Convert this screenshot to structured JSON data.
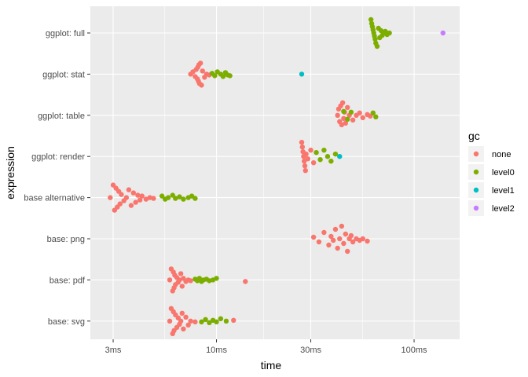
{
  "chart_data": {
    "type": "scatter",
    "xlabel": "time",
    "ylabel": "expression",
    "x_scale": "log10",
    "x_unit": "ms",
    "xlim": [
      2.3,
      170
    ],
    "x_ticks": [
      {
        "value": 3,
        "label": "3ms"
      },
      {
        "value": 10,
        "label": "10ms"
      },
      {
        "value": 30,
        "label": "30ms"
      },
      {
        "value": 100,
        "label": "100ms"
      }
    ],
    "categories": [
      "ggplot: full",
      "ggplot: stat",
      "ggplot: table",
      "ggplot: render",
      "base alternative",
      "base: png",
      "base: pdf",
      "base: svg"
    ],
    "grid": true,
    "legend": {
      "title": "gc",
      "position": "right",
      "entries": [
        {
          "label": "none",
          "color": "#F8766D"
        },
        {
          "label": "level0",
          "color": "#7CAE00"
        },
        {
          "label": "level1",
          "color": "#00BFC4"
        },
        {
          "label": "level2",
          "color": "#C77CFF"
        }
      ]
    },
    "series": [
      {
        "expression": "ggplot: full",
        "gc": "level0",
        "x": [
          60.5,
          61,
          61.5,
          62,
          62.5,
          63,
          63.5,
          64,
          65,
          66,
          67,
          68,
          69,
          70,
          71.5,
          73,
          75
        ],
        "y_offset": [
          -17,
          -12,
          -8,
          -4,
          0,
          4,
          8,
          13,
          17,
          -6,
          6,
          -3,
          3,
          0,
          -2,
          2,
          0
        ]
      },
      {
        "expression": "ggplot: full",
        "gc": "level2",
        "x": [
          140
        ],
        "y_offset": [
          0
        ]
      },
      {
        "expression": "ggplot: stat",
        "gc": "none",
        "x": [
          7.4,
          7.6,
          7.8,
          7.9,
          8.0,
          8.05,
          8.1,
          8.15,
          8.2,
          8.3,
          8.4,
          8.5,
          8.7,
          8.9,
          9.2
        ],
        "y_offset": [
          0,
          -3,
          3,
          -6,
          6,
          -9,
          9,
          -12,
          12,
          -14,
          14,
          -4,
          4,
          0,
          1
        ]
      },
      {
        "expression": "ggplot: stat",
        "gc": "level0",
        "x": [
          9.5,
          9.8,
          10.1,
          10.5,
          10.8,
          11.1,
          11.4,
          11.7
        ],
        "y_offset": [
          -1,
          2,
          -3,
          0,
          3,
          -2,
          1,
          2
        ]
      },
      {
        "expression": "ggplot: stat",
        "gc": "level1",
        "x": [
          27
        ],
        "y_offset": [
          0
        ]
      },
      {
        "expression": "ggplot: table",
        "gc": "none",
        "x": [
          41,
          41.5,
          42,
          42.5,
          43,
          43.5,
          44,
          44.5,
          45,
          46,
          47,
          49,
          51,
          53,
          55,
          58,
          60
        ],
        "y_offset": [
          0,
          -8,
          8,
          -12,
          12,
          -16,
          4,
          -4,
          10,
          -10,
          0,
          6,
          0,
          -3,
          3,
          -1,
          1
        ]
      },
      {
        "expression": "ggplot: table",
        "gc": "level0",
        "x": [
          44,
          46,
          48,
          62,
          64
        ],
        "y_offset": [
          -5,
          5,
          -4,
          -3,
          2
        ]
      },
      {
        "expression": "ggplot: render",
        "gc": "none",
        "x": [
          27,
          27.2,
          27.4,
          27.6,
          27.8,
          28,
          28.2,
          28.4,
          29,
          30,
          31
        ],
        "y_offset": [
          -18,
          -12,
          -6,
          0,
          6,
          12,
          18,
          -3,
          3,
          -8,
          8
        ]
      },
      {
        "expression": "ggplot: render",
        "gc": "level0",
        "x": [
          32,
          33.5,
          35,
          36.5,
          38,
          40
        ],
        "y_offset": [
          -5,
          4,
          -8,
          0,
          6,
          -3
        ]
      },
      {
        "expression": "ggplot: render",
        "gc": "level1",
        "x": [
          42
        ],
        "y_offset": [
          0
        ]
      },
      {
        "expression": "base alternative",
        "gc": "none",
        "x": [
          2.9,
          3.0,
          3.05,
          3.1,
          3.15,
          3.2,
          3.25,
          3.3,
          3.4,
          3.5,
          3.6,
          3.7,
          3.8,
          3.9,
          4.0,
          4.1,
          4.2,
          4.4,
          4.6,
          4.8
        ],
        "y_offset": [
          0,
          -16,
          16,
          -12,
          12,
          -8,
          8,
          -4,
          4,
          0,
          -10,
          10,
          -6,
          6,
          -3,
          3,
          -2,
          2,
          0,
          1
        ]
      },
      {
        "expression": "base alternative",
        "gc": "level0",
        "x": [
          5.3,
          5.5,
          5.7,
          6.0,
          6.2,
          6.5,
          6.8,
          7.2,
          7.5,
          7.8
        ],
        "y_offset": [
          -2,
          2,
          0,
          -3,
          1,
          -1,
          2,
          0,
          -2,
          1
        ]
      },
      {
        "expression": "base: png",
        "gc": "none",
        "x": [
          31,
          33,
          35,
          37,
          38,
          39,
          40,
          41,
          42,
          43,
          44,
          45,
          46,
          47,
          48,
          49,
          51,
          53,
          55,
          58
        ],
        "y_offset": [
          -2,
          4,
          -8,
          8,
          -3,
          2,
          -12,
          12,
          0,
          -16,
          6,
          -6,
          16,
          0,
          -4,
          4,
          0,
          2,
          0,
          3
        ]
      },
      {
        "expression": "base: pdf",
        "gc": "none",
        "x": [
          5.8,
          5.9,
          6.0,
          6.05,
          6.1,
          6.15,
          6.2,
          6.3,
          6.4,
          6.5,
          6.6,
          6.7,
          6.8,
          7.0,
          7.2,
          7.4,
          14
        ],
        "y_offset": [
          0,
          -14,
          14,
          -10,
          10,
          -6,
          6,
          -3,
          3,
          0,
          -8,
          8,
          -2,
          2,
          0,
          1,
          2
        ]
      },
      {
        "expression": "base: pdf",
        "gc": "level0",
        "x": [
          7.8,
          8.0,
          8.2,
          8.4,
          8.6,
          8.9,
          9.2,
          9.6,
          10.0
        ],
        "y_offset": [
          -1,
          1,
          -2,
          2,
          0,
          -1,
          1,
          0,
          -2
        ]
      },
      {
        "expression": "base: svg",
        "gc": "none",
        "x": [
          5.8,
          5.9,
          6.0,
          6.05,
          6.1,
          6.2,
          6.3,
          6.4,
          6.5,
          6.6,
          6.7,
          6.8,
          7.0,
          7.2,
          7.4,
          7.8,
          12.2
        ],
        "y_offset": [
          0,
          -16,
          16,
          -12,
          12,
          -8,
          8,
          -4,
          4,
          0,
          -10,
          10,
          -5,
          5,
          0,
          1,
          -1
        ]
      },
      {
        "expression": "base: svg",
        "gc": "level0",
        "x": [
          8.4,
          8.8,
          9.2,
          9.6,
          10.0,
          10.5,
          11.2
        ],
        "y_offset": [
          1,
          -2,
          2,
          -1,
          1,
          -3,
          0
        ]
      }
    ]
  }
}
